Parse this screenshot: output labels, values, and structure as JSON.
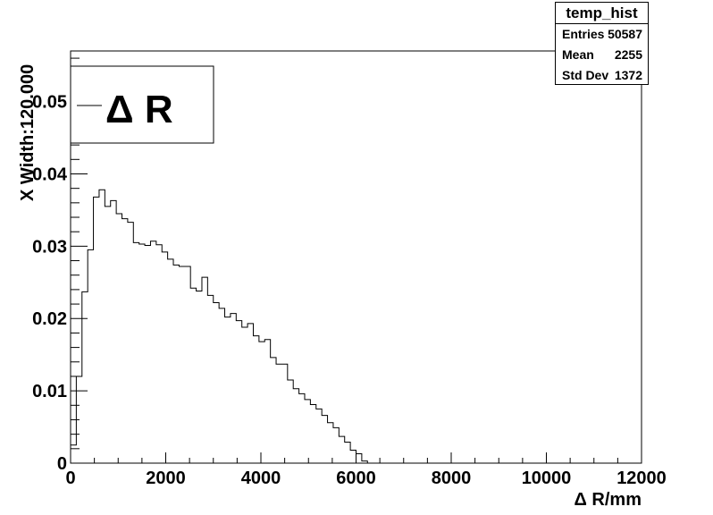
{
  "chart_data": {
    "type": "histogram",
    "xlabel": "Δ R/mm",
    "ylabel": "X Width:120.000",
    "xlim": [
      0,
      12000
    ],
    "ylim": [
      0,
      0.057
    ],
    "x_ticks": [
      0,
      2000,
      4000,
      6000,
      8000,
      10000,
      12000
    ],
    "x_tick_labels": [
      "0",
      "2000",
      "4000",
      "6000",
      "8000",
      "10000",
      "12000"
    ],
    "y_ticks": [
      0,
      0.01,
      0.02,
      0.03,
      0.04,
      0.05
    ],
    "y_tick_labels": [
      "0",
      "0.01",
      "0.02",
      "0.03",
      "0.04",
      "0.05"
    ],
    "bin_width": 120,
    "bins_start": 0,
    "values": [
      0.0025,
      0.012,
      0.0237,
      0.0295,
      0.0368,
      0.0378,
      0.0355,
      0.0363,
      0.0345,
      0.0338,
      0.0333,
      0.0305,
      0.0303,
      0.0301,
      0.0307,
      0.0302,
      0.0292,
      0.0282,
      0.0274,
      0.0272,
      0.0272,
      0.0242,
      0.0238,
      0.0257,
      0.0232,
      0.0222,
      0.0214,
      0.0202,
      0.0207,
      0.0197,
      0.0188,
      0.0193,
      0.0176,
      0.0168,
      0.0171,
      0.0146,
      0.0137,
      0.0137,
      0.0115,
      0.0103,
      0.0096,
      0.0088,
      0.0081,
      0.0075,
      0.0066,
      0.0056,
      0.0049,
      0.0037,
      0.0029,
      0.0018,
      0.0013,
      0.0003
    ],
    "legend": {
      "entry": "Δ R",
      "placement": "top-left"
    },
    "stats": {
      "title": "temp_hist",
      "rows": [
        {
          "label": "Entries",
          "value": "50587"
        },
        {
          "label": "Mean",
          "value": "2255"
        },
        {
          "label": "Std Dev",
          "value": "1372"
        }
      ]
    }
  }
}
